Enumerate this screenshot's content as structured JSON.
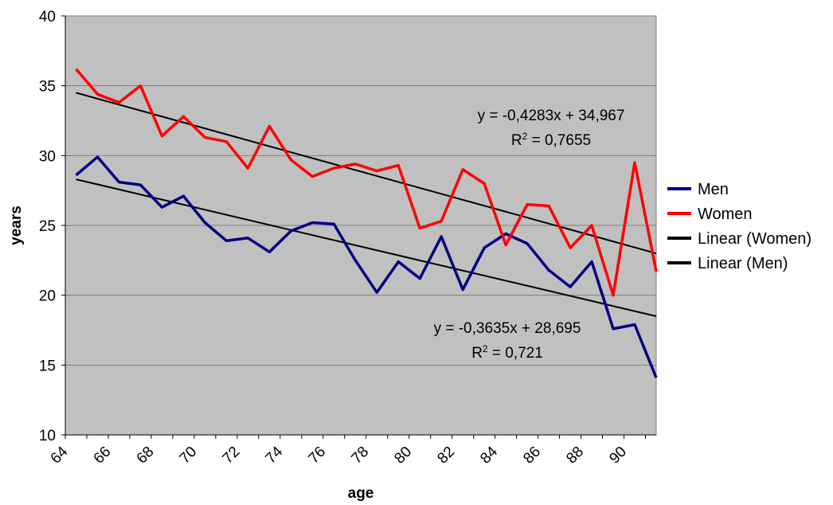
{
  "chart_data": {
    "type": "line",
    "xlabel": "age",
    "ylabel": "years",
    "xlim": [
      64,
      91.5
    ],
    "ylim": [
      10,
      40
    ],
    "x_ticks": [
      "64",
      "66",
      "68",
      "70",
      "72",
      "74",
      "76",
      "78",
      "80",
      "82",
      "84",
      "86",
      "88",
      "90"
    ],
    "y_ticks": [
      "10",
      "15",
      "20",
      "25",
      "30",
      "35",
      "40"
    ],
    "grid": "horizontal",
    "plot_background": "#c0c0c0",
    "legend_position": "right",
    "x": [
      64.5,
      65.5,
      66.5,
      67.5,
      68.5,
      69.5,
      70.5,
      71.5,
      72.5,
      73.5,
      74.5,
      75.5,
      76.5,
      77.5,
      78.5,
      79.5,
      80.5,
      81.5,
      82.5,
      83.5,
      84.5,
      85.5,
      86.5,
      87.5,
      88.5,
      89.5,
      90.5,
      91.5
    ],
    "series": [
      {
        "name": "Men",
        "color": "#000080",
        "values": [
          28.6,
          29.9,
          28.1,
          27.9,
          26.3,
          27.1,
          25.2,
          23.9,
          24.1,
          23.1,
          24.6,
          25.2,
          25.1,
          22.5,
          20.2,
          22.4,
          21.2,
          24.2,
          20.4,
          23.4,
          24.4,
          23.7,
          21.8,
          20.6,
          22.4,
          17.6,
          17.9,
          14.1
        ]
      },
      {
        "name": "Women",
        "color": "#ff0000",
        "values": [
          36.2,
          34.4,
          33.8,
          35.0,
          31.4,
          32.8,
          31.3,
          31.0,
          29.1,
          32.1,
          29.7,
          28.5,
          29.1,
          29.4,
          28.9,
          29.3,
          24.8,
          25.3,
          29.0,
          28.0,
          23.6,
          26.5,
          26.4,
          23.4,
          25.0,
          20.0,
          29.5,
          21.7
        ]
      }
    ],
    "trendlines": [
      {
        "name": "Linear (Women)",
        "color": "#000000",
        "x_range": [
          64.5,
          91.5
        ],
        "y_range": [
          34.5,
          23.0
        ],
        "equation": "y = -0,4283x + 34,967",
        "r2_label": "R",
        "r2_sup": "2",
        "r2_value": " = 0,7655"
      },
      {
        "name": "Linear (Men)",
        "color": "#000000",
        "x_range": [
          64.5,
          91.5
        ],
        "y_range": [
          28.3,
          18.5
        ],
        "equation": "y = -0,3635x + 28,695",
        "r2_label": "R",
        "r2_sup": "2",
        "r2_value": " = 0,721"
      }
    ]
  }
}
